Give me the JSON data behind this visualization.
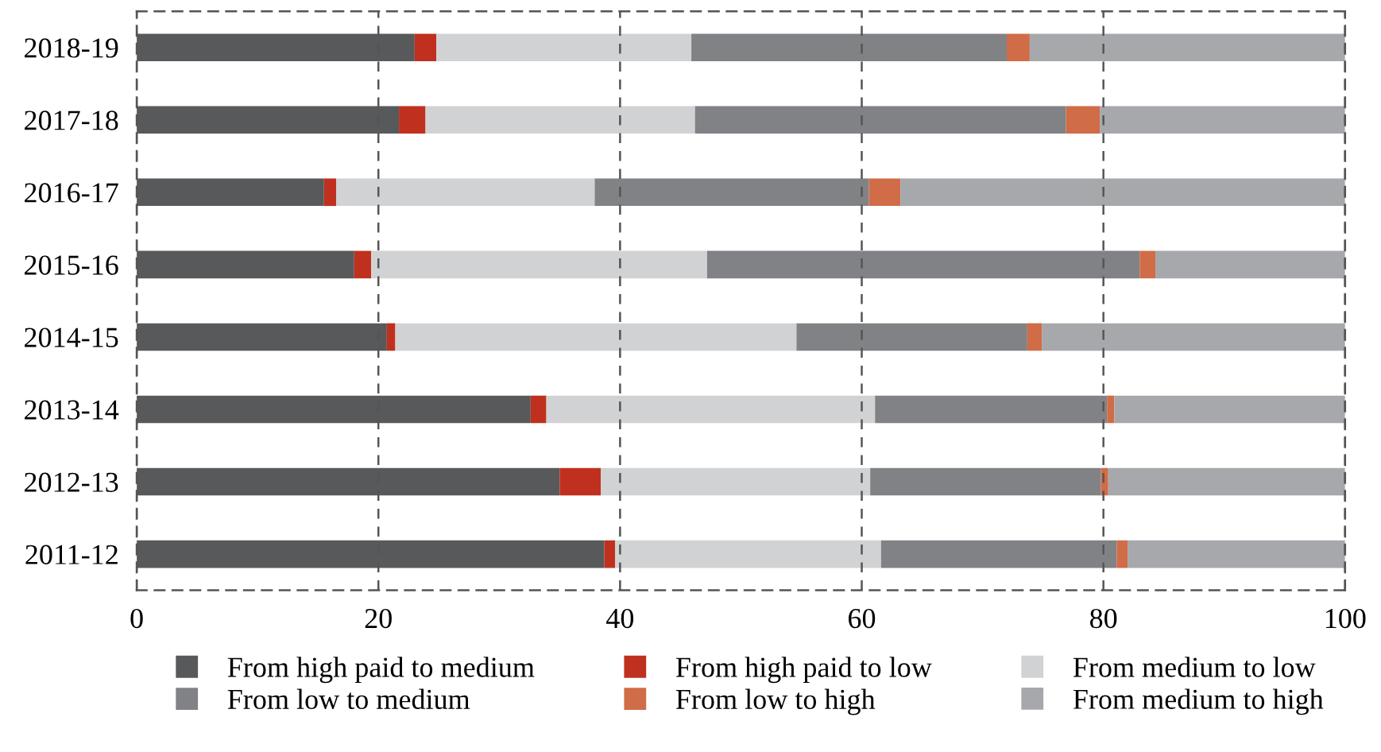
{
  "chart_data": {
    "type": "bar",
    "orientation": "horizontal",
    "stacked": true,
    "categories": [
      "2018-19",
      "2017-18",
      "2016-17",
      "2015-16",
      "2014-15",
      "2013-14",
      "2012-13",
      "2011-12"
    ],
    "series": [
      {
        "name": "From high paid to medium",
        "color": "#58595b",
        "values": [
          23.0,
          21.7,
          15.5,
          18.0,
          20.7,
          32.6,
          35.0,
          38.7
        ]
      },
      {
        "name": "From high paid to low",
        "color": "#c0301e",
        "values": [
          1.8,
          2.2,
          1.0,
          1.4,
          0.7,
          1.3,
          3.4,
          0.9
        ]
      },
      {
        "name": "From medium to low",
        "color": "#d1d2d4",
        "values": [
          21.1,
          22.3,
          21.4,
          27.8,
          33.2,
          27.2,
          22.3,
          22.0
        ]
      },
      {
        "name": "From low to medium",
        "color": "#818285",
        "values": [
          26.1,
          30.7,
          22.7,
          35.8,
          19.1,
          19.2,
          19.1,
          19.5
        ]
      },
      {
        "name": "From low to high",
        "color": "#d06c47",
        "values": [
          1.9,
          2.8,
          2.6,
          1.3,
          1.2,
          0.6,
          0.6,
          0.9
        ]
      },
      {
        "name": "From medium to high",
        "color": "#a7a8ab",
        "values": [
          26.1,
          20.3,
          36.8,
          15.7,
          25.1,
          19.1,
          19.6,
          18.0
        ]
      }
    ],
    "xlim": [
      0,
      100
    ],
    "xticks": [
      0,
      20,
      40,
      60,
      80,
      100
    ],
    "grid": "x",
    "legend": "bottom"
  }
}
